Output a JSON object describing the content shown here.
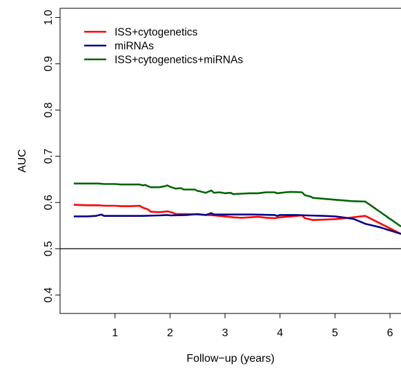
{
  "chart_data": {
    "type": "line",
    "title": "",
    "xlabel": "Follow−up (years)",
    "ylabel": "AUC",
    "xlim": [
      0.0,
      6.2
    ],
    "ylim": [
      0.36,
      1.02
    ],
    "xticks": [
      1,
      2,
      3,
      4,
      5,
      6
    ],
    "xtick_labels": [
      "1",
      "2",
      "3",
      "4",
      "5",
      "6"
    ],
    "yticks": [
      0.4,
      0.5,
      0.6,
      0.7,
      0.8,
      0.9,
      1.0
    ],
    "ytick_labels": [
      "0.4",
      "0.5",
      "0.6",
      "0.7",
      "0.8",
      "0.9",
      "1.0"
    ],
    "reference_line": {
      "y": 0.5,
      "color": "#000000"
    },
    "grid": false,
    "legend_position": "top-left",
    "series": [
      {
        "name": "ISS+cytogenetics",
        "color": "#ff0000",
        "points": [
          [
            0.25,
            0.595
          ],
          [
            0.5,
            0.594
          ],
          [
            0.7,
            0.594
          ],
          [
            0.8,
            0.593
          ],
          [
            1.0,
            0.593
          ],
          [
            1.1,
            0.592
          ],
          [
            1.3,
            0.592
          ],
          [
            1.45,
            0.593
          ],
          [
            1.5,
            0.589
          ],
          [
            1.6,
            0.585
          ],
          [
            1.65,
            0.58
          ],
          [
            1.8,
            0.579
          ],
          [
            1.9,
            0.58
          ],
          [
            1.95,
            0.581
          ],
          [
            2.05,
            0.578
          ],
          [
            2.1,
            0.575
          ],
          [
            2.3,
            0.575
          ],
          [
            2.5,
            0.574
          ],
          [
            2.7,
            0.573
          ],
          [
            2.8,
            0.572
          ],
          [
            2.9,
            0.571
          ],
          [
            3.0,
            0.57
          ],
          [
            3.15,
            0.568
          ],
          [
            3.3,
            0.567
          ],
          [
            3.45,
            0.568
          ],
          [
            3.6,
            0.569
          ],
          [
            3.75,
            0.567
          ],
          [
            3.9,
            0.566
          ],
          [
            4.0,
            0.568
          ],
          [
            4.2,
            0.57
          ],
          [
            4.4,
            0.572
          ],
          [
            4.45,
            0.566
          ],
          [
            4.6,
            0.562
          ],
          [
            4.8,
            0.563
          ],
          [
            5.0,
            0.564
          ],
          [
            5.2,
            0.566
          ],
          [
            5.4,
            0.569
          ],
          [
            5.55,
            0.571
          ],
          [
            5.8,
            0.556
          ],
          [
            6.2,
            0.532
          ]
        ]
      },
      {
        "name": "miRNAs",
        "color": "#00008b",
        "points": [
          [
            0.25,
            0.57
          ],
          [
            0.5,
            0.57
          ],
          [
            0.65,
            0.571
          ],
          [
            0.75,
            0.574
          ],
          [
            0.8,
            0.571
          ],
          [
            1.0,
            0.571
          ],
          [
            1.5,
            0.571
          ],
          [
            1.8,
            0.572
          ],
          [
            1.95,
            0.573
          ],
          [
            2.0,
            0.572
          ],
          [
            2.3,
            0.573
          ],
          [
            2.5,
            0.575
          ],
          [
            2.65,
            0.573
          ],
          [
            2.75,
            0.577
          ],
          [
            2.8,
            0.574
          ],
          [
            3.0,
            0.574
          ],
          [
            3.5,
            0.574
          ],
          [
            3.9,
            0.573
          ],
          [
            3.95,
            0.571
          ],
          [
            4.0,
            0.573
          ],
          [
            4.3,
            0.573
          ],
          [
            4.5,
            0.572
          ],
          [
            4.8,
            0.571
          ],
          [
            5.0,
            0.57
          ],
          [
            5.2,
            0.567
          ],
          [
            5.35,
            0.564
          ],
          [
            5.55,
            0.554
          ],
          [
            5.8,
            0.547
          ],
          [
            6.2,
            0.532
          ]
        ]
      },
      {
        "name": "ISS+cytogenetics+miRNAs",
        "color": "#006400",
        "points": [
          [
            0.25,
            0.641
          ],
          [
            0.5,
            0.641
          ],
          [
            0.7,
            0.641
          ],
          [
            0.8,
            0.64
          ],
          [
            1.0,
            0.64
          ],
          [
            1.1,
            0.639
          ],
          [
            1.3,
            0.639
          ],
          [
            1.45,
            0.639
          ],
          [
            1.5,
            0.637
          ],
          [
            1.55,
            0.638
          ],
          [
            1.6,
            0.635
          ],
          [
            1.65,
            0.633
          ],
          [
            1.8,
            0.633
          ],
          [
            1.9,
            0.635
          ],
          [
            1.95,
            0.637
          ],
          [
            2.0,
            0.634
          ],
          [
            2.1,
            0.63
          ],
          [
            2.2,
            0.631
          ],
          [
            2.25,
            0.628
          ],
          [
            2.3,
            0.628
          ],
          [
            2.45,
            0.628
          ],
          [
            2.5,
            0.625
          ],
          [
            2.55,
            0.624
          ],
          [
            2.65,
            0.621
          ],
          [
            2.75,
            0.626
          ],
          [
            2.8,
            0.621
          ],
          [
            2.9,
            0.622
          ],
          [
            3.0,
            0.62
          ],
          [
            3.1,
            0.621
          ],
          [
            3.15,
            0.618
          ],
          [
            3.3,
            0.619
          ],
          [
            3.45,
            0.62
          ],
          [
            3.6,
            0.62
          ],
          [
            3.75,
            0.622
          ],
          [
            3.9,
            0.622
          ],
          [
            3.95,
            0.62
          ],
          [
            4.1,
            0.622
          ],
          [
            4.2,
            0.623
          ],
          [
            4.4,
            0.622
          ],
          [
            4.45,
            0.616
          ],
          [
            4.55,
            0.613
          ],
          [
            4.6,
            0.61
          ],
          [
            4.8,
            0.608
          ],
          [
            5.0,
            0.606
          ],
          [
            5.2,
            0.604
          ],
          [
            5.3,
            0.603
          ],
          [
            5.55,
            0.602
          ],
          [
            6.2,
            0.548
          ]
        ]
      }
    ]
  }
}
